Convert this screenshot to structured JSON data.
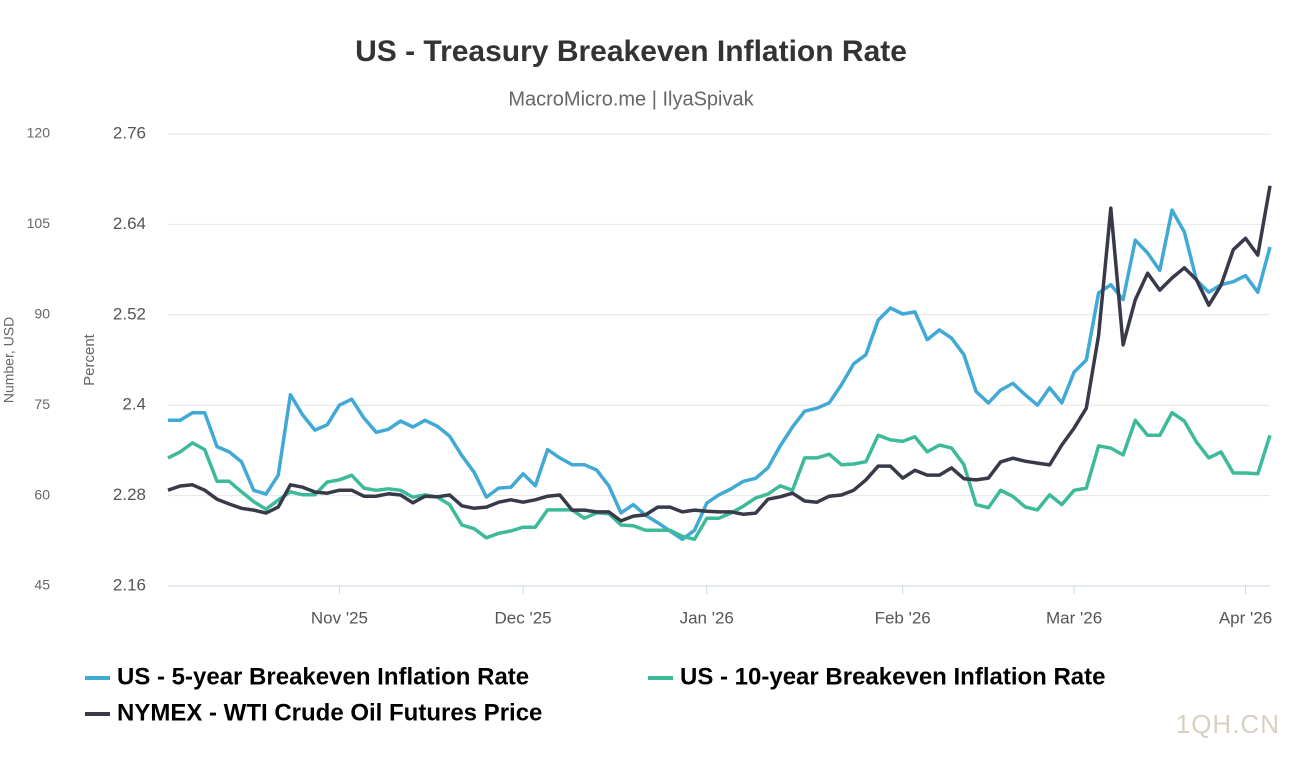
{
  "chart_data": {
    "type": "line",
    "title": "US - Treasury Breakeven Inflation Rate",
    "subtitle": "MacroMicro.me | IlyaSpivak",
    "ylabel": "Percent",
    "y2label": "Number, USD",
    "ylim": [
      2.16,
      2.76
    ],
    "yticks": [
      2.16,
      2.28,
      2.4,
      2.52,
      2.64,
      2.76
    ],
    "y2lim": [
      45,
      120
    ],
    "y2ticks": [
      45,
      60,
      75,
      90,
      105,
      120
    ],
    "grid": true,
    "legend": "bottom",
    "categories": [
      null,
      null,
      null,
      null,
      null,
      null,
      null,
      null,
      null,
      null,
      null,
      null,
      null,
      null,
      "Nov '25",
      null,
      null,
      null,
      null,
      null,
      null,
      null,
      null,
      null,
      null,
      null,
      null,
      null,
      null,
      "Dec '25",
      null,
      null,
      null,
      null,
      null,
      null,
      null,
      null,
      null,
      null,
      null,
      null,
      null,
      null,
      "Jan '26",
      null,
      null,
      null,
      null,
      null,
      null,
      null,
      null,
      null,
      null,
      null,
      null,
      null,
      null,
      null,
      "Feb '26",
      null,
      null,
      null,
      null,
      null,
      null,
      null,
      null,
      null,
      null,
      null,
      null,
      null,
      "Mar '26",
      null,
      null,
      null,
      null,
      null,
      null,
      null,
      null,
      null,
      null,
      null,
      null,
      null,
      "Apr '26",
      null,
      null
    ],
    "series": [
      {
        "name": "US - 5-year Breakeven Inflation Rate",
        "color": "#41a9d6",
        "axis": "y",
        "values": [
          2.38,
          2.38,
          2.39,
          2.39,
          2.345,
          2.338,
          2.325,
          2.287,
          2.282,
          2.307,
          2.414,
          2.387,
          2.367,
          2.374,
          2.4,
          2.408,
          2.383,
          2.364,
          2.368,
          2.379,
          2.371,
          2.38,
          2.372,
          2.359,
          2.333,
          2.311,
          2.278,
          2.29,
          2.291,
          2.309,
          2.293,
          2.341,
          2.33,
          2.321,
          2.321,
          2.314,
          2.293,
          2.257,
          2.268,
          2.254,
          2.244,
          2.233,
          2.222,
          2.234,
          2.27,
          2.281,
          2.289,
          2.299,
          2.303,
          2.317,
          2.346,
          2.371,
          2.392,
          2.396,
          2.403,
          2.427,
          2.455,
          2.467,
          2.513,
          2.529,
          2.521,
          2.524,
          2.487,
          2.5,
          2.489,
          2.467,
          2.418,
          2.403,
          2.42,
          2.429,
          2.414,
          2.4,
          2.423,
          2.403,
          2.444,
          2.46,
          2.549,
          2.56,
          2.54,
          2.619,
          2.602,
          2.579,
          2.659,
          2.63,
          2.566,
          2.55,
          2.56,
          2.564,
          2.572,
          2.55,
          2.61
        ]
      },
      {
        "name": "US - 10-year Breakeven Inflation Rate",
        "color": "#3dba99",
        "axis": "y",
        "values": [
          2.33,
          2.338,
          2.35,
          2.341,
          2.299,
          2.299,
          2.285,
          2.272,
          2.262,
          2.274,
          2.285,
          2.281,
          2.281,
          2.298,
          2.301,
          2.307,
          2.29,
          2.287,
          2.289,
          2.287,
          2.278,
          2.281,
          2.278,
          2.268,
          2.241,
          2.236,
          2.224,
          2.23,
          2.233,
          2.238,
          2.238,
          2.261,
          2.261,
          2.261,
          2.25,
          2.257,
          2.256,
          2.241,
          2.24,
          2.234,
          2.234,
          2.234,
          2.226,
          2.222,
          2.25,
          2.25,
          2.257,
          2.266,
          2.277,
          2.282,
          2.293,
          2.287,
          2.33,
          2.33,
          2.335,
          2.321,
          2.322,
          2.325,
          2.36,
          2.354,
          2.352,
          2.358,
          2.338,
          2.347,
          2.343,
          2.321,
          2.268,
          2.264,
          2.287,
          2.279,
          2.265,
          2.261,
          2.281,
          2.268,
          2.287,
          2.29,
          2.346,
          2.343,
          2.334,
          2.38,
          2.36,
          2.36,
          2.39,
          2.379,
          2.351,
          2.33,
          2.338,
          2.31,
          2.31,
          2.309,
          2.36
        ]
      },
      {
        "name": "NYMEX - WTI Crude Oil Futures Price",
        "color": "#383a4a",
        "axis": "y2",
        "values": [
          60.9,
          61.6,
          61.8,
          60.9,
          59.4,
          58.6,
          57.9,
          57.6,
          57.1,
          58.1,
          61.8,
          61.4,
          60.6,
          60.4,
          60.9,
          60.9,
          59.9,
          59.9,
          60.3,
          60.1,
          58.8,
          59.9,
          59.8,
          60.1,
          58.3,
          57.9,
          58.1,
          58.9,
          59.3,
          58.9,
          59.3,
          59.9,
          60.1,
          57.6,
          57.6,
          57.3,
          57.3,
          55.8,
          56.6,
          56.8,
          58.1,
          58.1,
          57.3,
          57.6,
          57.4,
          57.3,
          57.3,
          56.9,
          57.1,
          59.4,
          59.8,
          60.4,
          59.1,
          58.9,
          59.9,
          60.1,
          60.9,
          62.6,
          64.9,
          64.9,
          62.9,
          64.2,
          63.4,
          63.4,
          64.6,
          62.8,
          62.6,
          62.9,
          65.6,
          66.2,
          65.7,
          65.4,
          65.1,
          68.4,
          71.2,
          74.5,
          86.6,
          107.7,
          85.0,
          92.5,
          96.9,
          94.1,
          96.1,
          97.8,
          95.8,
          91.6,
          94.9,
          100.8,
          102.7,
          99.9,
          111.4
        ]
      }
    ]
  },
  "watermark": "1QH.CN"
}
